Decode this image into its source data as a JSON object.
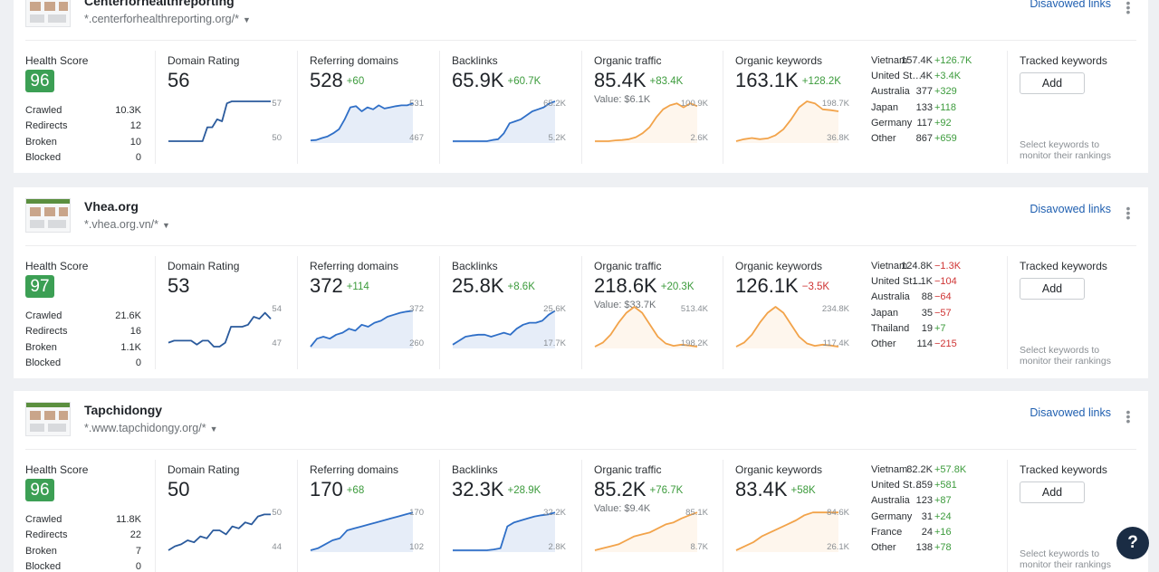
{
  "disavowed_label": "Disavowed links",
  "labels": {
    "health_score": "Health Score",
    "domain_rating": "Domain Rating",
    "referring_domains": "Referring domains",
    "backlinks": "Backlinks",
    "organic_traffic": "Organic traffic",
    "organic_keywords": "Organic keywords",
    "tracked_keywords": "Tracked keywords",
    "crawled": "Crawled",
    "redirects": "Redirects",
    "broken": "Broken",
    "blocked": "Blocked",
    "add_button": "Add",
    "tracked_hint": "Select keywords to monitor their rankings"
  },
  "colors": {
    "blue": "#2f6fc7",
    "blue_dark": "#2a5a9c",
    "orange": "#f2a34a",
    "green": "#3c9f54"
  },
  "help_icon": "?",
  "projects": [
    {
      "name": "Centerforhealthreporting",
      "url": "*.centerforhealthreporting.org/*",
      "health": "96",
      "crawled": "10.3K",
      "redirects": "12",
      "broken": "10",
      "blocked": "0",
      "dr": {
        "value": "56",
        "delta": "",
        "max": "57",
        "min": "50",
        "series": [
          0,
          0,
          0,
          0,
          0,
          0,
          0,
          0,
          0.35,
          0.35,
          0.55,
          0.5,
          0.95,
          1,
          1,
          1,
          1,
          1,
          1,
          1,
          1,
          1
        ]
      },
      "rd": {
        "value": "528",
        "delta": "+60",
        "max": "531",
        "min": "467",
        "series": [
          0.02,
          0.03,
          0.08,
          0.12,
          0.2,
          0.3,
          0.55,
          0.85,
          0.88,
          0.75,
          0.85,
          0.8,
          0.9,
          0.82,
          0.85,
          0.88,
          0.9,
          0.9,
          0.95
        ]
      },
      "bl": {
        "value": "65.9K",
        "delta": "+60.7K",
        "max": "65.2K",
        "min": "5.2K",
        "series": [
          0,
          0,
          0,
          0,
          0,
          0,
          0,
          0.03,
          0.05,
          0.2,
          0.45,
          0.5,
          0.55,
          0.65,
          0.75,
          0.8,
          0.85,
          0.95,
          1
        ]
      },
      "ot": {
        "value": "85.4K",
        "delta": "+83.4K",
        "sub": "Value: $6.1K",
        "max": "100.9K",
        "min": "2.6K",
        "series": [
          0,
          0,
          0,
          0.02,
          0.03,
          0.05,
          0.1,
          0.2,
          0.35,
          0.6,
          0.8,
          0.9,
          0.95,
          0.85,
          0.95,
          0.88
        ]
      },
      "ok": {
        "value": "163.1K",
        "delta": "+128.2K",
        "max": "198.7K",
        "min": "36.8K",
        "series": [
          0,
          0.05,
          0.08,
          0.05,
          0.07,
          0.15,
          0.3,
          0.55,
          0.85,
          1,
          0.95,
          0.8,
          0.78,
          0.75
        ]
      },
      "countries": [
        {
          "name": "Vietnam",
          "value": "157.4K",
          "delta": "+126.7K",
          "sign": "pos"
        },
        {
          "name": "United States",
          "value": "4K",
          "delta": "+3.4K",
          "sign": "pos"
        },
        {
          "name": "Australia",
          "value": "377",
          "delta": "+329",
          "sign": "pos"
        },
        {
          "name": "Japan",
          "value": "133",
          "delta": "+118",
          "sign": "pos"
        },
        {
          "name": "Germany",
          "value": "117",
          "delta": "+92",
          "sign": "pos"
        },
        {
          "name": "Other",
          "value": "867",
          "delta": "+659",
          "sign": "pos"
        }
      ]
    },
    {
      "name": "Vhea.org",
      "url": "*.vhea.org.vn/*",
      "health": "97",
      "crawled": "21.6K",
      "redirects": "16",
      "broken": "1.1K",
      "blocked": "0",
      "dr": {
        "value": "53",
        "delta": "",
        "max": "54",
        "min": "47",
        "series": [
          0.1,
          0.15,
          0.15,
          0.15,
          0.15,
          0.05,
          0.15,
          0.15,
          0,
          0,
          0.1,
          0.5,
          0.5,
          0.5,
          0.55,
          0.75,
          0.7,
          0.85,
          0.7
        ]
      },
      "rd": {
        "value": "372",
        "delta": "+114",
        "max": "372",
        "min": "260",
        "series": [
          0,
          0.2,
          0.25,
          0.2,
          0.3,
          0.35,
          0.45,
          0.4,
          0.55,
          0.5,
          0.6,
          0.65,
          0.75,
          0.8,
          0.85,
          0.88,
          0.9
        ]
      },
      "bl": {
        "value": "25.8K",
        "delta": "+8.6K",
        "max": "25.6K",
        "min": "17.7K",
        "series": [
          0.05,
          0.15,
          0.25,
          0.28,
          0.3,
          0.3,
          0.25,
          0.3,
          0.35,
          0.3,
          0.45,
          0.55,
          0.6,
          0.6,
          0.65,
          0.8,
          0.9
        ]
      },
      "ot": {
        "value": "218.6K",
        "delta": "+20.3K",
        "sub": "Value: $33.7K",
        "max": "513.4K",
        "min": "198.2K",
        "series": [
          0,
          0.1,
          0.3,
          0.6,
          0.85,
          1,
          0.85,
          0.55,
          0.25,
          0.08,
          0.02,
          0.05,
          0.03,
          0
        ]
      },
      "ok": {
        "value": "126.1K",
        "delta": "−3.5K",
        "delta_sign": "neg",
        "max": "234.8K",
        "min": "117.4K",
        "series": [
          0,
          0.1,
          0.3,
          0.6,
          0.85,
          1,
          0.85,
          0.55,
          0.25,
          0.08,
          0.02,
          0.05,
          0.03,
          0
        ]
      },
      "countries": [
        {
          "name": "Vietnam",
          "value": "124.8K",
          "delta": "−1.3K",
          "sign": "neg"
        },
        {
          "name": "United States",
          "value": "1.1K",
          "delta": "−104",
          "sign": "neg"
        },
        {
          "name": "Australia",
          "value": "88",
          "delta": "−64",
          "sign": "neg"
        },
        {
          "name": "Japan",
          "value": "35",
          "delta": "−57",
          "sign": "neg"
        },
        {
          "name": "Thailand",
          "value": "19",
          "delta": "+7",
          "sign": "pos"
        },
        {
          "name": "Other",
          "value": "114",
          "delta": "−215",
          "sign": "neg"
        }
      ]
    },
    {
      "name": "Tapchidongy",
      "url": "*.www.tapchidongy.org/*",
      "health": "96",
      "crawled": "11.8K",
      "redirects": "22",
      "broken": "7",
      "blocked": "0",
      "dr": {
        "value": "50",
        "delta": "",
        "max": "50",
        "min": "44",
        "series": [
          0,
          0.1,
          0.15,
          0.25,
          0.2,
          0.35,
          0.3,
          0.5,
          0.5,
          0.4,
          0.6,
          0.55,
          0.7,
          0.65,
          0.85,
          0.9,
          0.9
        ]
      },
      "rd": {
        "value": "170",
        "delta": "+68",
        "max": "170",
        "min": "102",
        "series": [
          0,
          0.05,
          0.15,
          0.25,
          0.3,
          0.5,
          0.55,
          0.6,
          0.65,
          0.7,
          0.75,
          0.8,
          0.85,
          0.9,
          0.95
        ]
      },
      "bl": {
        "value": "32.3K",
        "delta": "+28.9K",
        "max": "32.2K",
        "min": "2.8K",
        "series": [
          0,
          0,
          0,
          0,
          0,
          0,
          0.02,
          0.05,
          0.6,
          0.7,
          0.75,
          0.8,
          0.85,
          0.88,
          0.9,
          0.95
        ]
      },
      "ot": {
        "value": "85.2K",
        "delta": "+76.7K",
        "sub": "Value: $9.4K",
        "max": "85.1K",
        "min": "8.7K",
        "series": [
          0,
          0.05,
          0.1,
          0.15,
          0.25,
          0.35,
          0.4,
          0.45,
          0.55,
          0.65,
          0.7,
          0.8,
          0.88,
          0.95
        ]
      },
      "ok": {
        "value": "83.4K",
        "delta": "+58K",
        "max": "84.6K",
        "min": "26.1K",
        "series": [
          0,
          0.1,
          0.2,
          0.35,
          0.45,
          0.55,
          0.65,
          0.75,
          0.88,
          0.95,
          0.95,
          0.95,
          0.95
        ]
      },
      "countries": [
        {
          "name": "Vietnam",
          "value": "82.2K",
          "delta": "+57.8K",
          "sign": "pos"
        },
        {
          "name": "United States",
          "value": "859",
          "delta": "+581",
          "sign": "pos"
        },
        {
          "name": "Australia",
          "value": "123",
          "delta": "+87",
          "sign": "pos"
        },
        {
          "name": "Germany",
          "value": "31",
          "delta": "+24",
          "sign": "pos"
        },
        {
          "name": "France",
          "value": "24",
          "delta": "+16",
          "sign": "pos"
        },
        {
          "name": "Other",
          "value": "138",
          "delta": "+78",
          "sign": "pos"
        }
      ]
    }
  ]
}
